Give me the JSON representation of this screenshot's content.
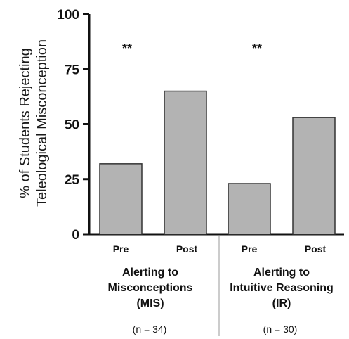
{
  "chart_data": {
    "type": "bar",
    "ylabel_lines": [
      "% of Students Rejecting",
      "Teleological Misconception"
    ],
    "ylim": [
      0,
      100
    ],
    "yticks": [
      0,
      25,
      50,
      75,
      100
    ],
    "grid": false,
    "groups": [
      {
        "label_lines": [
          "Alerting to",
          "Misconceptions",
          "(MIS)"
        ],
        "n_label": "(n = 34)",
        "significance": "**",
        "bars": [
          {
            "category": "Pre",
            "value": 32
          },
          {
            "category": "Post",
            "value": 65
          }
        ]
      },
      {
        "label_lines": [
          "Alerting to",
          "Intuitive Reasoning",
          "(IR)"
        ],
        "n_label": "(n = 30)",
        "significance": "**",
        "bars": [
          {
            "category": "Pre",
            "value": 23
          },
          {
            "category": "Post",
            "value": 53
          }
        ]
      }
    ],
    "colors": {
      "bar_fill": "#b3b3b3",
      "bar_stroke": "#333333",
      "axis": "#111111",
      "separator": "#999999"
    }
  }
}
